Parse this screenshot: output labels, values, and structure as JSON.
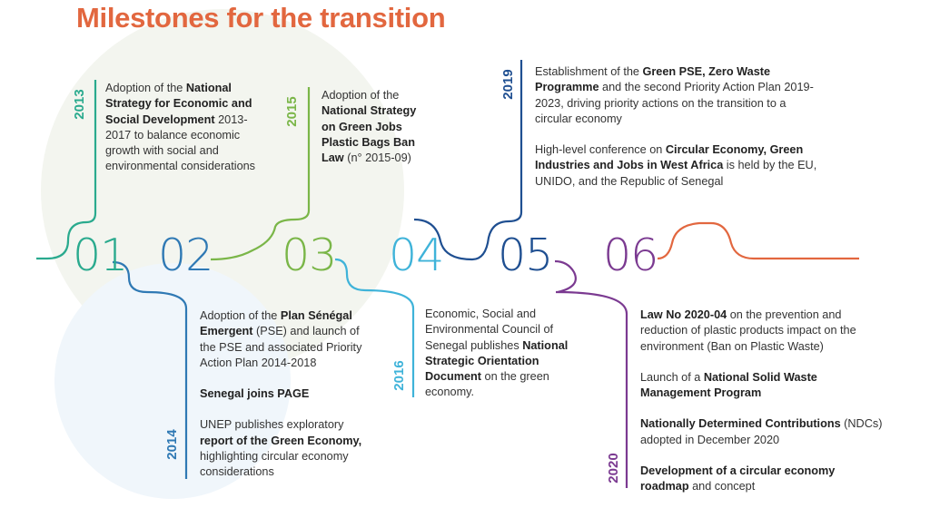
{
  "title": "Milestones for the transition",
  "colors": {
    "title": "#e2673f",
    "m01": "#2aaa8e",
    "m02": "#2f79b4",
    "m03": "#7ab648",
    "m04": "#3fb3d9",
    "m05": "#1f4f91",
    "m06": "#7b3a91",
    "tail": "#e2673f"
  },
  "milestones": [
    {
      "number": "01",
      "year": "2013",
      "paragraphs": [
        [
          {
            "t": "Adoption of the ",
            "b": false
          },
          {
            "t": "National Strategy for Economic and Social Development",
            "b": true
          },
          {
            "t": " 2013-2017 to balance economic growth with social and environmental considerations",
            "b": false
          }
        ]
      ]
    },
    {
      "number": "02",
      "year": "2014",
      "paragraphs": [
        [
          {
            "t": "Adoption of the ",
            "b": false
          },
          {
            "t": "Plan Sénégal Emergent",
            "b": true
          },
          {
            "t": " (PSE) and launch of the PSE and associated Priority Action Plan 2014-2018",
            "b": false
          }
        ],
        [
          {
            "t": "Senegal joins PAGE",
            "b": true
          }
        ],
        [
          {
            "t": "UNEP publishes exploratory ",
            "b": false
          },
          {
            "t": "report of the Green Economy,",
            "b": true
          },
          {
            "t": " highlighting circular economy considerations",
            "b": false
          }
        ]
      ]
    },
    {
      "number": "03",
      "year": "2015",
      "paragraphs": [
        [
          {
            "t": "Adoption of the ",
            "b": false
          },
          {
            "t": "National Strategy on Green Jobs Plastic Bags Ban Law",
            "b": true
          },
          {
            "t": " (n° 2015-09)",
            "b": false
          }
        ]
      ]
    },
    {
      "number": "04",
      "year": "2016",
      "paragraphs": [
        [
          {
            "t": "Economic, Social and Environmental Council of Senegal publishes ",
            "b": false
          },
          {
            "t": "National Strategic Orientation Document",
            "b": true
          },
          {
            "t": " on the green economy.",
            "b": false
          }
        ]
      ]
    },
    {
      "number": "05",
      "year": "2019",
      "paragraphs": [
        [
          {
            "t": "Establishment of the ",
            "b": false
          },
          {
            "t": "Green PSE, Zero Waste Programme",
            "b": true
          },
          {
            "t": " and the second Priority Action Plan 2019-2023, driving priority actions on the transition to a circular economy",
            "b": false
          }
        ],
        [
          {
            "t": "High-level conference on ",
            "b": false
          },
          {
            "t": "Circular Economy, Green Industries and Jobs in West Africa",
            "b": true
          },
          {
            "t": " is held by the EU, UNIDO, and the Republic of Senegal",
            "b": false
          }
        ]
      ]
    },
    {
      "number": "06",
      "year": "2020",
      "paragraphs": [
        [
          {
            "t": "Law No 2020-04",
            "b": true
          },
          {
            "t": " on the prevention and reduction of plastic products impact on the environment (Ban on Plastic Waste)",
            "b": false
          }
        ],
        [
          {
            "t": "Launch of a ",
            "b": false
          },
          {
            "t": "National Solid Waste Management Program",
            "b": true
          }
        ],
        [
          {
            "t": "Nationally Determined Contributions",
            "b": true
          },
          {
            "t": " (NDCs) adopted in December 2020",
            "b": false
          }
        ],
        [
          {
            "t": "Development of a circular economy roadmap",
            "b": true
          },
          {
            "t": " and concept",
            "b": false
          }
        ]
      ]
    }
  ]
}
